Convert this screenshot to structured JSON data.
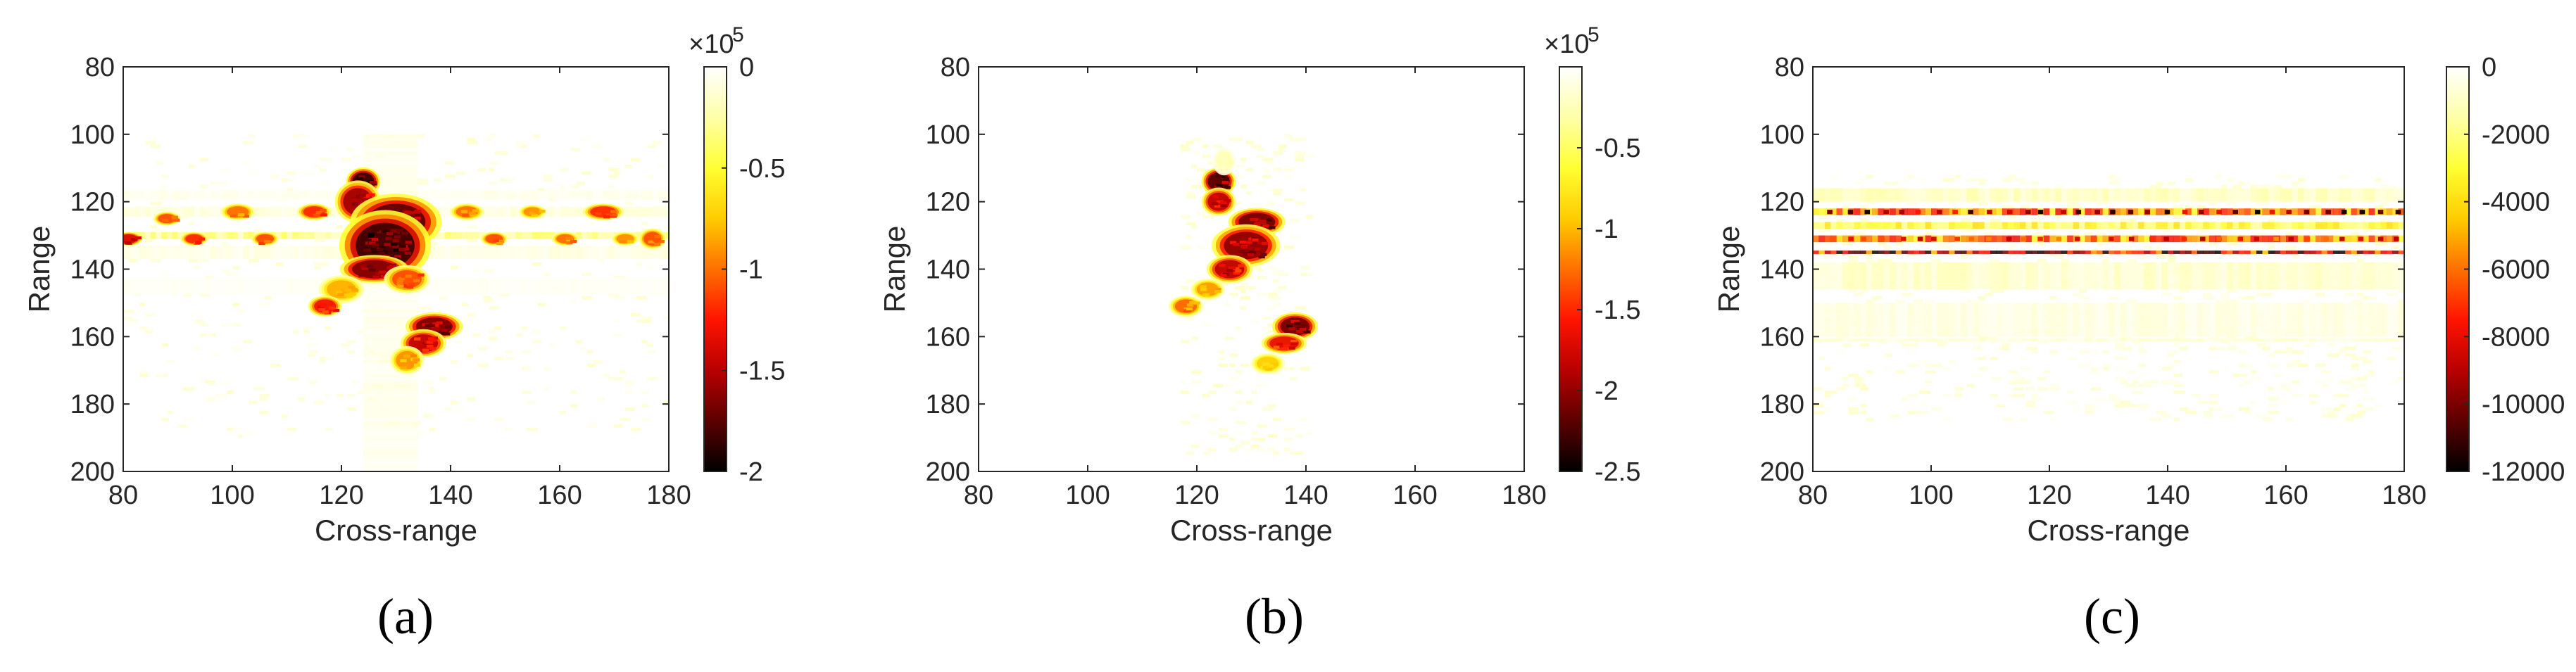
{
  "colormap": [
    "#000000",
    "#5c0000",
    "#b80000",
    "#ff1400",
    "#ff7000",
    "#ffcc00",
    "#ffff33",
    "#ffffa8",
    "#ffffff"
  ],
  "chart_data": [
    {
      "type": "heatmap",
      "panel_label": "(a)",
      "title": "",
      "xlabel": "Cross-range",
      "ylabel": "Range",
      "xlim": [
        80,
        180
      ],
      "ylim": [
        80,
        200
      ],
      "y_reversed": true,
      "x_ticks": [
        "80",
        "100",
        "120",
        "140",
        "160",
        "180"
      ],
      "y_ticks": [
        "80",
        "100",
        "120",
        "140",
        "160",
        "180",
        "200"
      ],
      "colorbar": {
        "min": -2,
        "max": 0,
        "ticks": [
          "0",
          "-0.5",
          "-1",
          "-1.5",
          "-2"
        ],
        "tick_values": [
          0,
          -0.5,
          -1,
          -1.5,
          -2
        ],
        "multiplier": "×10",
        "multiplier_exp": "5"
      },
      "bands": [
        {
          "y": 130,
          "x0": 80,
          "x1": 180,
          "value": -0.3,
          "width": 2
        },
        {
          "y": 123,
          "x0": 80,
          "x1": 180,
          "value": -0.1,
          "width": 3
        },
        {
          "y": 135,
          "x0": 80,
          "x1": 180,
          "value": -0.08,
          "width": 4
        },
        {
          "y": 118,
          "x0": 80,
          "x1": 180,
          "value": -0.05,
          "width": 3
        },
        {
          "y": 145,
          "x0": 80,
          "x1": 180,
          "value": -0.03,
          "width": 5
        },
        {
          "x": 129,
          "y0": 100,
          "y1": 200,
          "value": -0.07,
          "width": 10
        }
      ],
      "blobs": [
        {
          "x": 124,
          "y": 114,
          "rx": 1.5,
          "ry": 2,
          "value": -2.0
        },
        {
          "x": 123,
          "y": 120,
          "rx": 2,
          "ry": 3,
          "value": -1.7
        },
        {
          "x": 130,
          "y": 126,
          "rx": 4,
          "ry": 4,
          "value": -1.9
        },
        {
          "x": 128,
          "y": 133,
          "rx": 4,
          "ry": 5,
          "value": -2.0
        },
        {
          "x": 126,
          "y": 140,
          "rx": 3,
          "ry": 2,
          "value": -1.8
        },
        {
          "x": 132,
          "y": 143,
          "rx": 2,
          "ry": 2,
          "value": -1.2
        },
        {
          "x": 120,
          "y": 146,
          "rx": 2,
          "ry": 2,
          "value": -0.9
        },
        {
          "x": 117,
          "y": 151,
          "rx": 1.5,
          "ry": 1.5,
          "value": -1.4
        },
        {
          "x": 137,
          "y": 157,
          "rx": 2.5,
          "ry": 2,
          "value": -1.8
        },
        {
          "x": 135,
          "y": 162,
          "rx": 2,
          "ry": 2,
          "value": -1.6
        },
        {
          "x": 132,
          "y": 167,
          "rx": 1.5,
          "ry": 2,
          "value": -1.0
        },
        {
          "x": 81,
          "y": 131,
          "rx": 1.2,
          "ry": 1,
          "value": -1.5
        },
        {
          "x": 88,
          "y": 125,
          "rx": 1.2,
          "ry": 1,
          "value": -1.2
        },
        {
          "x": 93,
          "y": 131,
          "rx": 1.2,
          "ry": 1,
          "value": -1.3
        },
        {
          "x": 101,
          "y": 123,
          "rx": 1.5,
          "ry": 1.2,
          "value": -1.1
        },
        {
          "x": 106,
          "y": 131,
          "rx": 1.2,
          "ry": 1,
          "value": -1.2
        },
        {
          "x": 115,
          "y": 123,
          "rx": 1.5,
          "ry": 1.2,
          "value": -1.3
        },
        {
          "x": 143,
          "y": 123,
          "rx": 1.5,
          "ry": 1.2,
          "value": -1.1
        },
        {
          "x": 148,
          "y": 131,
          "rx": 1.2,
          "ry": 1,
          "value": -1.2
        },
        {
          "x": 155,
          "y": 123,
          "rx": 1.2,
          "ry": 1,
          "value": -1.0
        },
        {
          "x": 161,
          "y": 131,
          "rx": 1.2,
          "ry": 1,
          "value": -1.1
        },
        {
          "x": 168,
          "y": 123,
          "rx": 1.8,
          "ry": 1.2,
          "value": -1.3
        },
        {
          "x": 172,
          "y": 131,
          "rx": 1.2,
          "ry": 1,
          "value": -1.0
        },
        {
          "x": 177,
          "y": 131,
          "rx": 1.2,
          "ry": 1.5,
          "value": -1.2
        }
      ],
      "noise": {
        "x0": 80,
        "x1": 180,
        "y0": 100,
        "y1": 190,
        "density": 0.05,
        "max_value": -0.15
      },
      "seed": 11
    },
    {
      "type": "heatmap",
      "panel_label": "(b)",
      "title": "",
      "xlabel": "Cross-range",
      "ylabel": "Range",
      "xlim": [
        80,
        180
      ],
      "ylim": [
        80,
        200
      ],
      "y_reversed": true,
      "x_ticks": [
        "80",
        "100",
        "120",
        "140",
        "160",
        "180"
      ],
      "y_ticks": [
        "80",
        "100",
        "120",
        "140",
        "160",
        "180",
        "200"
      ],
      "colorbar": {
        "min": -2.5,
        "max": 0,
        "ticks": [
          "-0.5",
          "-1",
          "-1.5",
          "-2",
          "-2.5"
        ],
        "tick_values": [
          -0.5,
          -1,
          -1.5,
          -2,
          -2.5
        ],
        "multiplier": "×10",
        "multiplier_exp": "5"
      },
      "bands": [],
      "blobs": [
        {
          "x": 124,
          "y": 114,
          "rx": 1.5,
          "ry": 2,
          "value": -2.4
        },
        {
          "x": 124,
          "y": 120,
          "rx": 1.5,
          "ry": 2,
          "value": -2.0
        },
        {
          "x": 131,
          "y": 126,
          "rx": 2.5,
          "ry": 2,
          "value": -2.3
        },
        {
          "x": 129,
          "y": 133,
          "rx": 3,
          "ry": 3,
          "value": -2.2
        },
        {
          "x": 126,
          "y": 140,
          "rx": 2,
          "ry": 2,
          "value": -2.0
        },
        {
          "x": 122,
          "y": 146,
          "rx": 1.5,
          "ry": 1.5,
          "value": -1.2
        },
        {
          "x": 118,
          "y": 151,
          "rx": 1.5,
          "ry": 1.5,
          "value": -1.4
        },
        {
          "x": 138,
          "y": 157,
          "rx": 2,
          "ry": 2,
          "value": -2.3
        },
        {
          "x": 136,
          "y": 162,
          "rx": 2,
          "ry": 1.5,
          "value": -1.8
        },
        {
          "x": 133,
          "y": 168,
          "rx": 1.5,
          "ry": 1.5,
          "value": -1.0
        },
        {
          "x": 125,
          "y": 108,
          "rx": 1,
          "ry": 2,
          "value": -0.3
        }
      ],
      "noise": {
        "x0": 117,
        "x1": 141,
        "y0": 100,
        "y1": 195,
        "density": 0.08,
        "max_value": -0.2
      },
      "seed": 23
    },
    {
      "type": "heatmap",
      "panel_label": "(c)",
      "title": "",
      "xlabel": "Cross-range",
      "ylabel": "Range",
      "xlim": [
        80,
        180
      ],
      "ylim": [
        80,
        200
      ],
      "y_reversed": true,
      "x_ticks": [
        "80",
        "100",
        "120",
        "140",
        "160",
        "180"
      ],
      "y_ticks": [
        "80",
        "100",
        "120",
        "140",
        "160",
        "180",
        "200"
      ],
      "colorbar": {
        "min": -12000,
        "max": 0,
        "ticks": [
          "0",
          "-2000",
          "-4000",
          "-6000",
          "-8000",
          "-10000",
          "-12000"
        ],
        "tick_values": [
          0,
          -2000,
          -4000,
          -6000,
          -8000,
          -10000,
          -12000
        ],
        "multiplier": "",
        "multiplier_exp": ""
      },
      "bands": [
        {
          "y": 123,
          "x0": 80,
          "x1": 180,
          "value": -5500,
          "width": 2
        },
        {
          "y": 131,
          "x0": 80,
          "x1": 180,
          "value": -5500,
          "width": 2
        },
        {
          "y": 135,
          "x0": 80,
          "x1": 180,
          "value": -8500,
          "width": 1
        },
        {
          "y": 127,
          "x0": 80,
          "x1": 180,
          "value": -2800,
          "width": 2
        },
        {
          "y": 118,
          "x0": 80,
          "x1": 180,
          "value": -1100,
          "width": 4
        },
        {
          "y": 142,
          "x0": 80,
          "x1": 180,
          "value": -900,
          "width": 8
        },
        {
          "y": 155,
          "x0": 80,
          "x1": 180,
          "value": -500,
          "width": 10
        },
        {
          "y": 161,
          "x0": 80,
          "x1": 180,
          "value": -700,
          "width": 1
        }
      ],
      "blobs": [],
      "dots": {
        "rows": [
          123,
          131
        ],
        "x0": 82,
        "x1": 178,
        "step": 3,
        "values": [
          -12000,
          -9000
        ]
      },
      "noise": {
        "x0": 80,
        "x1": 180,
        "y0": 112,
        "y1": 185,
        "density": 0.12,
        "max_value": -900
      },
      "seed": 37
    }
  ]
}
